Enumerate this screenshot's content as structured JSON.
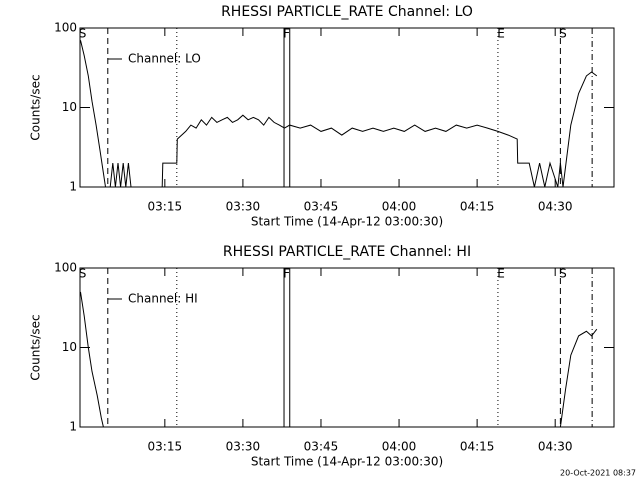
{
  "chart_data": [
    {
      "type": "line",
      "title": "RHESSI PARTICLE_RATE Channel: LO",
      "xlabel": "Start Time (14-Apr-12 03:00:30)",
      "ylabel": "Counts/sec",
      "ylog": true,
      "xlim": [
        -1.3,
        101.3
      ],
      "ylim": [
        1,
        100
      ],
      "xticks": [
        {
          "value": 15,
          "label": "03:15"
        },
        {
          "value": 30,
          "label": "03:30"
        },
        {
          "value": 45,
          "label": "03:45"
        },
        {
          "value": 60,
          "label": "04:00"
        },
        {
          "value": 75,
          "label": "04:15"
        },
        {
          "value": 90,
          "label": "04:30"
        }
      ],
      "yticks": [
        1,
        10,
        100
      ],
      "flags": [
        {
          "x": -0.8,
          "label": "S"
        },
        {
          "x": 38.4,
          "label": "F"
        },
        {
          "x": 79.6,
          "label": "E"
        },
        {
          "x": 91.5,
          "label": "S"
        }
      ],
      "lines": [
        {
          "x": 4.04,
          "style": "dashed"
        },
        {
          "x": 17.3,
          "style": "dotted"
        },
        {
          "x": 37.9,
          "style": "solid"
        },
        {
          "x": 39.0,
          "style": "solid"
        },
        {
          "x": 79.0,
          "style": "dotted"
        },
        {
          "x": 91.0,
          "style": "dashed"
        },
        {
          "x": 97.1,
          "style": "dashdot"
        }
      ],
      "series": [
        {
          "name": "Channel: LO",
          "color": "#000000",
          "x": [
            -1.2,
            -0.5,
            0.3,
            1,
            1.8,
            2.5,
            3.2,
            3.6,
            4.5,
            5,
            5.5,
            6,
            6.5,
            7,
            7.5,
            8,
            8.5,
            14.5,
            14.6,
            17.3,
            17.4,
            19,
            20,
            21,
            22,
            23,
            24,
            25,
            26,
            27,
            28,
            29,
            30,
            31,
            32,
            33,
            34,
            35,
            36,
            37,
            38,
            39,
            41,
            43,
            45,
            47,
            49,
            51,
            53,
            55,
            57,
            59,
            61,
            63,
            65,
            67,
            69,
            71,
            73,
            75,
            77,
            79,
            81,
            82.7,
            82.8,
            85,
            86,
            87,
            88,
            89,
            90.5,
            91,
            91.5,
            93,
            94.5,
            96,
            97,
            98
          ],
          "values": [
            70,
            45,
            25,
            12,
            6,
            3,
            1.5,
            1,
            1,
            2,
            1,
            2,
            1,
            2,
            1,
            2,
            1,
            1,
            2,
            2,
            4,
            5,
            6,
            5.5,
            7,
            6,
            7.5,
            6.5,
            7,
            7.5,
            6.5,
            7,
            8,
            7,
            7.5,
            7,
            6,
            7.5,
            6.5,
            6,
            5.5,
            6,
            5.5,
            6,
            5,
            5.5,
            4.5,
            5.5,
            5,
            5.5,
            5,
            5.5,
            5,
            6,
            5,
            5.5,
            5,
            6,
            5.5,
            6,
            5.5,
            5,
            4.5,
            4,
            2,
            2,
            1,
            2,
            1,
            2,
            1,
            2,
            1,
            6,
            15,
            25,
            28,
            25
          ]
        }
      ]
    },
    {
      "type": "line",
      "title": "RHESSI PARTICLE_RATE Channel: HI",
      "xlabel": "Start Time (14-Apr-12 03:00:30)",
      "ylabel": "Counts/sec",
      "ylog": true,
      "xlim": [
        -1.3,
        101.3
      ],
      "ylim": [
        1,
        100
      ],
      "xticks": [
        {
          "value": 15,
          "label": "03:15"
        },
        {
          "value": 30,
          "label": "03:30"
        },
        {
          "value": 45,
          "label": "03:45"
        },
        {
          "value": 60,
          "label": "04:00"
        },
        {
          "value": 75,
          "label": "04:15"
        },
        {
          "value": 90,
          "label": "04:30"
        }
      ],
      "yticks": [
        1,
        10,
        100
      ],
      "flags": [
        {
          "x": -0.8,
          "label": "S"
        },
        {
          "x": 38.4,
          "label": "F"
        },
        {
          "x": 79.6,
          "label": "E"
        },
        {
          "x": 91.5,
          "label": "S"
        }
      ],
      "lines": [
        {
          "x": 4.04,
          "style": "dashed"
        },
        {
          "x": 17.3,
          "style": "dotted"
        },
        {
          "x": 37.9,
          "style": "solid"
        },
        {
          "x": 39.0,
          "style": "solid"
        },
        {
          "x": 79.0,
          "style": "dotted"
        },
        {
          "x": 91.0,
          "style": "dashed"
        },
        {
          "x": 97.1,
          "style": "dashdot"
        }
      ],
      "series": [
        {
          "name": "Channel: HI",
          "color": "#000000",
          "x": [
            -1.2,
            -0.5,
            0.3,
            1,
            2,
            2.8,
            3.2,
            91,
            92,
            93,
            94.5,
            96,
            97,
            98
          ],
          "values": [
            50,
            25,
            10,
            5,
            2.5,
            1.3,
            1,
            1,
            3,
            8,
            14,
            16,
            14,
            17
          ]
        }
      ]
    }
  ],
  "footer": "20-Oct-2021 08:37"
}
